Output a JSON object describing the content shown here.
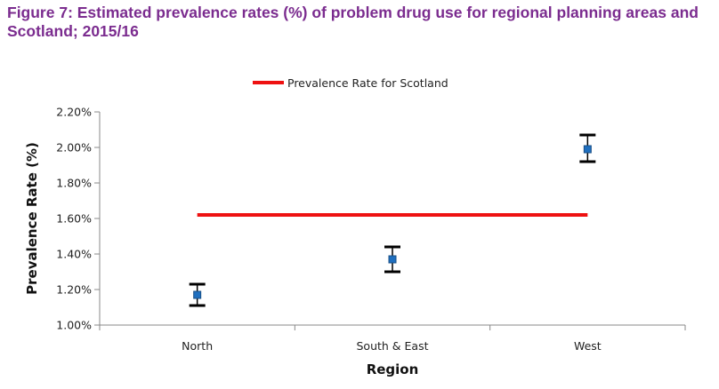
{
  "figure_title": "Figure 7: Estimated prevalence rates (%) of problem drug use for regional planning areas and Scotland; 2015/16",
  "chart_data": {
    "type": "scatter",
    "title": "",
    "xlabel": "Region",
    "ylabel": "Prevalence Rate (%)",
    "categories": [
      "North",
      "South & East",
      "West"
    ],
    "ylim": [
      1.0,
      2.2
    ],
    "y_ticks": [
      1.0,
      1.2,
      1.4,
      1.6,
      1.8,
      2.0,
      2.2
    ],
    "y_tick_labels": [
      "1.00%",
      "1.20%",
      "1.40%",
      "1.60%",
      "1.80%",
      "2.00%",
      "2.20%"
    ],
    "series": [
      {
        "values": [
          1.17,
          1.37,
          1.99
        ],
        "lower": [
          1.11,
          1.3,
          1.92
        ],
        "upper": [
          1.23,
          1.44,
          2.07
        ],
        "marker": "square",
        "color": "#1f6fbf"
      }
    ],
    "reference_line": {
      "name": "Prevalence Rate for Scotland",
      "value": 1.62,
      "color": "#ee1111"
    },
    "legend_position": "top-center",
    "grid": false
  }
}
